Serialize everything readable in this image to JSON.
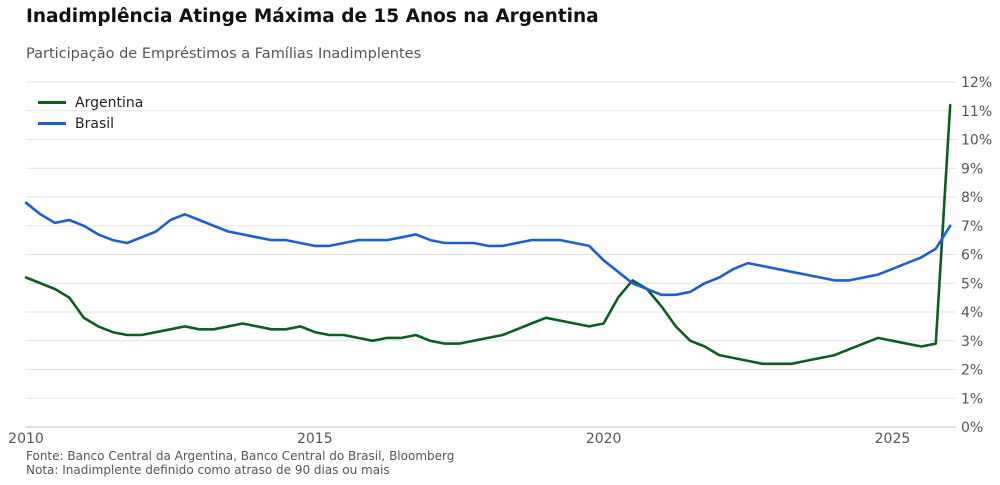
{
  "header": {
    "title": "Inadimplência Atinge Máxima de 15 Anos na Argentina",
    "subtitle": "Participação de Empréstimos a Famílias Inadimplentes"
  },
  "footer": {
    "source": "Fonte: Banco Central da Argentina, Banco Central do Brasil, Bloomberg",
    "note": "Nota: Inadimplente definido como atraso de 90 dias ou mais"
  },
  "chart_data": {
    "type": "line",
    "title": "Inadimplência Atinge Máxima de 15 Anos na Argentina",
    "subtitle": "Participação de Empréstimos a Famílias Inadimplentes",
    "xlabel": "",
    "ylabel": "",
    "xlim": [
      2010,
      2026.1
    ],
    "ylim": [
      0,
      12
    ],
    "x_ticks": [
      2010,
      2015,
      2020,
      2025
    ],
    "x_tick_labels": [
      "2010",
      "2015",
      "2020",
      "2025"
    ],
    "y_ticks": [
      0,
      1,
      2,
      3,
      4,
      5,
      6,
      7,
      8,
      9,
      10,
      11,
      12
    ],
    "y_tick_labels": [
      "0%",
      "1%",
      "2%",
      "3%",
      "4%",
      "5%",
      "6%",
      "7%",
      "8%",
      "9%",
      "10%",
      "11%",
      "12%"
    ],
    "y_axis_side": "right",
    "grid": "horizontal",
    "legend_position": "top-left",
    "series": [
      {
        "name": "Argentina",
        "color": "#0b5e1f",
        "points": [
          [
            2010.0,
            5.2
          ],
          [
            2010.5,
            4.8
          ],
          [
            2010.75,
            4.5
          ],
          [
            2011.0,
            3.8
          ],
          [
            2011.25,
            3.5
          ],
          [
            2011.5,
            3.3
          ],
          [
            2011.75,
            3.2
          ],
          [
            2012.0,
            3.2
          ],
          [
            2012.5,
            3.4
          ],
          [
            2012.75,
            3.5
          ],
          [
            2013.0,
            3.4
          ],
          [
            2013.25,
            3.4
          ],
          [
            2013.75,
            3.6
          ],
          [
            2014.0,
            3.5
          ],
          [
            2014.25,
            3.4
          ],
          [
            2014.5,
            3.4
          ],
          [
            2014.75,
            3.5
          ],
          [
            2015.0,
            3.3
          ],
          [
            2015.25,
            3.2
          ],
          [
            2015.5,
            3.2
          ],
          [
            2015.75,
            3.1
          ],
          [
            2016.0,
            3.0
          ],
          [
            2016.25,
            3.1
          ],
          [
            2016.5,
            3.1
          ],
          [
            2016.75,
            3.2
          ],
          [
            2017.0,
            3.0
          ],
          [
            2017.25,
            2.9
          ],
          [
            2017.5,
            2.9
          ],
          [
            2018.0,
            3.1
          ],
          [
            2018.25,
            3.2
          ],
          [
            2018.5,
            3.4
          ],
          [
            2018.75,
            3.6
          ],
          [
            2019.0,
            3.8
          ],
          [
            2019.25,
            3.7
          ],
          [
            2019.5,
            3.6
          ],
          [
            2019.75,
            3.5
          ],
          [
            2020.0,
            3.6
          ],
          [
            2020.25,
            4.5
          ],
          [
            2020.5,
            5.1
          ],
          [
            2020.75,
            4.8
          ],
          [
            2021.0,
            4.2
          ],
          [
            2021.25,
            3.5
          ],
          [
            2021.5,
            3.0
          ],
          [
            2021.75,
            2.8
          ],
          [
            2022.0,
            2.5
          ],
          [
            2022.5,
            2.3
          ],
          [
            2022.75,
            2.2
          ],
          [
            2023.0,
            2.2
          ],
          [
            2023.25,
            2.2
          ],
          [
            2023.5,
            2.3
          ],
          [
            2024.0,
            2.5
          ],
          [
            2024.5,
            2.9
          ],
          [
            2024.75,
            3.1
          ],
          [
            2025.0,
            3.0
          ],
          [
            2025.5,
            2.8
          ],
          [
            2025.75,
            2.9
          ],
          [
            2026.0,
            11.2
          ]
        ]
      },
      {
        "name": "Brasil",
        "color": "#1a5fd6",
        "points": [
          [
            2010.0,
            7.8
          ],
          [
            2010.25,
            7.4
          ],
          [
            2010.5,
            7.1
          ],
          [
            2010.75,
            7.2
          ],
          [
            2011.0,
            7.0
          ],
          [
            2011.25,
            6.7
          ],
          [
            2011.5,
            6.5
          ],
          [
            2011.75,
            6.4
          ],
          [
            2012.0,
            6.6
          ],
          [
            2012.25,
            6.8
          ],
          [
            2012.5,
            7.2
          ],
          [
            2012.75,
            7.4
          ],
          [
            2013.0,
            7.2
          ],
          [
            2013.25,
            7.0
          ],
          [
            2013.5,
            6.8
          ],
          [
            2013.75,
            6.7
          ],
          [
            2014.0,
            6.6
          ],
          [
            2014.25,
            6.5
          ],
          [
            2014.5,
            6.5
          ],
          [
            2014.75,
            6.4
          ],
          [
            2015.0,
            6.3
          ],
          [
            2015.25,
            6.3
          ],
          [
            2015.5,
            6.4
          ],
          [
            2015.75,
            6.5
          ],
          [
            2016.0,
            6.5
          ],
          [
            2016.25,
            6.5
          ],
          [
            2016.5,
            6.6
          ],
          [
            2016.75,
            6.7
          ],
          [
            2017.0,
            6.5
          ],
          [
            2017.25,
            6.4
          ],
          [
            2017.5,
            6.4
          ],
          [
            2017.75,
            6.4
          ],
          [
            2018.0,
            6.3
          ],
          [
            2018.25,
            6.3
          ],
          [
            2018.5,
            6.4
          ],
          [
            2018.75,
            6.5
          ],
          [
            2019.0,
            6.5
          ],
          [
            2019.25,
            6.5
          ],
          [
            2019.5,
            6.4
          ],
          [
            2019.75,
            6.3
          ],
          [
            2020.0,
            5.8
          ],
          [
            2020.25,
            5.4
          ],
          [
            2020.5,
            5.0
          ],
          [
            2020.75,
            4.8
          ],
          [
            2021.0,
            4.6
          ],
          [
            2021.25,
            4.6
          ],
          [
            2021.5,
            4.7
          ],
          [
            2021.75,
            5.0
          ],
          [
            2022.0,
            5.2
          ],
          [
            2022.25,
            5.5
          ],
          [
            2022.5,
            5.7
          ],
          [
            2022.75,
            5.6
          ],
          [
            2023.0,
            5.5
          ],
          [
            2023.25,
            5.4
          ],
          [
            2023.5,
            5.3
          ],
          [
            2023.75,
            5.2
          ],
          [
            2024.0,
            5.1
          ],
          [
            2024.25,
            5.1
          ],
          [
            2024.5,
            5.2
          ],
          [
            2024.75,
            5.3
          ],
          [
            2025.0,
            5.5
          ],
          [
            2025.25,
            5.7
          ],
          [
            2025.5,
            5.9
          ],
          [
            2025.75,
            6.2
          ],
          [
            2026.0,
            7.0
          ]
        ]
      }
    ]
  }
}
